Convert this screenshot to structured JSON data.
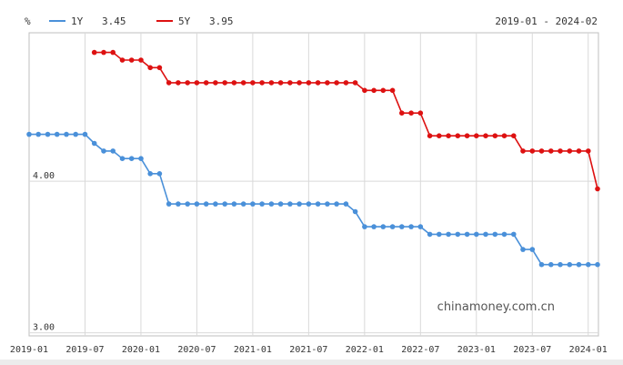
{
  "colors": {
    "one_year": "#4a90d9",
    "five_year": "#dd1111",
    "grid": "#d9d9d9",
    "axis": "#bfbfbf"
  },
  "legend": {
    "unit": "%",
    "items": [
      {
        "label": "1Y",
        "value": "3.45"
      },
      {
        "label": "5Y",
        "value": "3.95"
      }
    ],
    "range": "2019-01 - 2024-02"
  },
  "watermark": "chinamoney.com.cn",
  "chart_data": {
    "type": "line",
    "ylabel": "%",
    "y_visible_range": [
      2.98,
      4.98
    ],
    "y_ticks": [
      "4.00",
      "3.00"
    ],
    "x_ticks": [
      "2019-01",
      "2019-07",
      "2020-01",
      "2020-07",
      "2021-01",
      "2021-07",
      "2022-01",
      "2022-07",
      "2023-01",
      "2023-07",
      "2024-01"
    ],
    "x_range_months": [
      0,
      61
    ],
    "grid": true,
    "series": [
      {
        "name": "1Y",
        "points": [
          [
            0,
            4.31
          ],
          [
            1,
            4.31
          ],
          [
            2,
            4.31
          ],
          [
            3,
            4.31
          ],
          [
            4,
            4.31
          ],
          [
            5,
            4.31
          ],
          [
            6,
            4.31
          ],
          [
            7,
            4.25
          ],
          [
            8,
            4.2
          ],
          [
            9,
            4.2
          ],
          [
            10,
            4.15
          ],
          [
            11,
            4.15
          ],
          [
            12,
            4.15
          ],
          [
            13,
            4.05
          ],
          [
            14,
            4.05
          ],
          [
            15,
            3.85
          ],
          [
            16,
            3.85
          ],
          [
            17,
            3.85
          ],
          [
            18,
            3.85
          ],
          [
            19,
            3.85
          ],
          [
            20,
            3.85
          ],
          [
            21,
            3.85
          ],
          [
            22,
            3.85
          ],
          [
            23,
            3.85
          ],
          [
            24,
            3.85
          ],
          [
            25,
            3.85
          ],
          [
            26,
            3.85
          ],
          [
            27,
            3.85
          ],
          [
            28,
            3.85
          ],
          [
            29,
            3.85
          ],
          [
            30,
            3.85
          ],
          [
            31,
            3.85
          ],
          [
            32,
            3.85
          ],
          [
            33,
            3.85
          ],
          [
            34,
            3.85
          ],
          [
            35,
            3.8
          ],
          [
            36,
            3.7
          ],
          [
            37,
            3.7
          ],
          [
            38,
            3.7
          ],
          [
            39,
            3.7
          ],
          [
            40,
            3.7
          ],
          [
            41,
            3.7
          ],
          [
            42,
            3.7
          ],
          [
            43,
            3.65
          ],
          [
            44,
            3.65
          ],
          [
            45,
            3.65
          ],
          [
            46,
            3.65
          ],
          [
            47,
            3.65
          ],
          [
            48,
            3.65
          ],
          [
            49,
            3.65
          ],
          [
            50,
            3.65
          ],
          [
            51,
            3.65
          ],
          [
            52,
            3.65
          ],
          [
            53,
            3.55
          ],
          [
            54,
            3.55
          ],
          [
            55,
            3.45
          ],
          [
            56,
            3.45
          ],
          [
            57,
            3.45
          ],
          [
            58,
            3.45
          ],
          [
            59,
            3.45
          ],
          [
            60,
            3.45
          ],
          [
            61,
            3.45
          ]
        ]
      },
      {
        "name": "5Y",
        "points": [
          [
            7,
            4.85
          ],
          [
            8,
            4.85
          ],
          [
            9,
            4.85
          ],
          [
            10,
            4.8
          ],
          [
            11,
            4.8
          ],
          [
            12,
            4.8
          ],
          [
            13,
            4.75
          ],
          [
            14,
            4.75
          ],
          [
            15,
            4.65
          ],
          [
            16,
            4.65
          ],
          [
            17,
            4.65
          ],
          [
            18,
            4.65
          ],
          [
            19,
            4.65
          ],
          [
            20,
            4.65
          ],
          [
            21,
            4.65
          ],
          [
            22,
            4.65
          ],
          [
            23,
            4.65
          ],
          [
            24,
            4.65
          ],
          [
            25,
            4.65
          ],
          [
            26,
            4.65
          ],
          [
            27,
            4.65
          ],
          [
            28,
            4.65
          ],
          [
            29,
            4.65
          ],
          [
            30,
            4.65
          ],
          [
            31,
            4.65
          ],
          [
            32,
            4.65
          ],
          [
            33,
            4.65
          ],
          [
            34,
            4.65
          ],
          [
            35,
            4.65
          ],
          [
            36,
            4.6
          ],
          [
            37,
            4.6
          ],
          [
            38,
            4.6
          ],
          [
            39,
            4.6
          ],
          [
            40,
            4.45
          ],
          [
            41,
            4.45
          ],
          [
            42,
            4.45
          ],
          [
            43,
            4.3
          ],
          [
            44,
            4.3
          ],
          [
            45,
            4.3
          ],
          [
            46,
            4.3
          ],
          [
            47,
            4.3
          ],
          [
            48,
            4.3
          ],
          [
            49,
            4.3
          ],
          [
            50,
            4.3
          ],
          [
            51,
            4.3
          ],
          [
            52,
            4.3
          ],
          [
            53,
            4.2
          ],
          [
            54,
            4.2
          ],
          [
            55,
            4.2
          ],
          [
            56,
            4.2
          ],
          [
            57,
            4.2
          ],
          [
            58,
            4.2
          ],
          [
            59,
            4.2
          ],
          [
            60,
            4.2
          ],
          [
            61,
            3.95
          ]
        ]
      }
    ]
  }
}
